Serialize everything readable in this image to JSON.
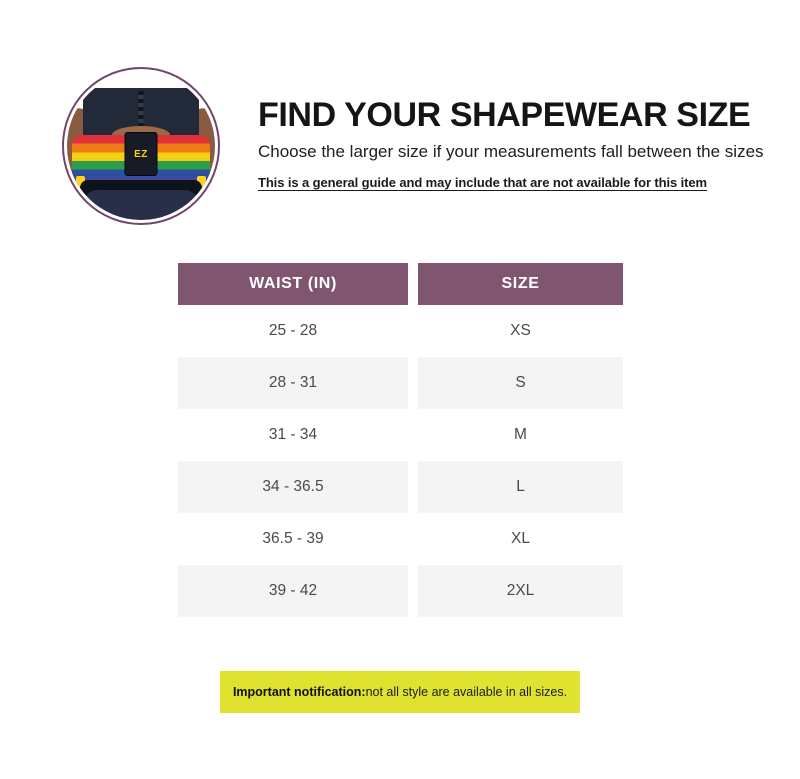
{
  "hero": {
    "description": "rainbow striped waist trainer shapewear worn on torso, circular crop",
    "logo_text": "EZ"
  },
  "header": {
    "title": "FIND YOUR SHAPEWEAR SIZE",
    "subtitle": "Choose the larger size if your measurements fall between the sizes",
    "note": "This is a general guide and may include that are not available for this item"
  },
  "size_table": {
    "columns": [
      "WAIST (IN)",
      "SIZE"
    ],
    "rows": [
      {
        "waist": "25 - 28",
        "size": "XS"
      },
      {
        "waist": "28 - 31",
        "size": "S"
      },
      {
        "waist": "31 - 34",
        "size": "M"
      },
      {
        "waist": "34 - 36.5",
        "size": "L"
      },
      {
        "waist": "36.5 - 39",
        "size": "XL"
      },
      {
        "waist": "39 - 42",
        "size": "2XL"
      }
    ]
  },
  "notification": {
    "label": "Important notification:",
    "text": " not all style are available in all sizes."
  },
  "colors": {
    "table_header_bg": "#80556f",
    "table_alt_row_bg": "#f4f4f5",
    "notice_bg": "#dfe32f",
    "circle_border": "#70476a",
    "rainbow_stripes": [
      "#e03038",
      "#ef7a18",
      "#f2cf15",
      "#2f9e4c",
      "#2c4fa0",
      "#5a3f9e"
    ]
  }
}
